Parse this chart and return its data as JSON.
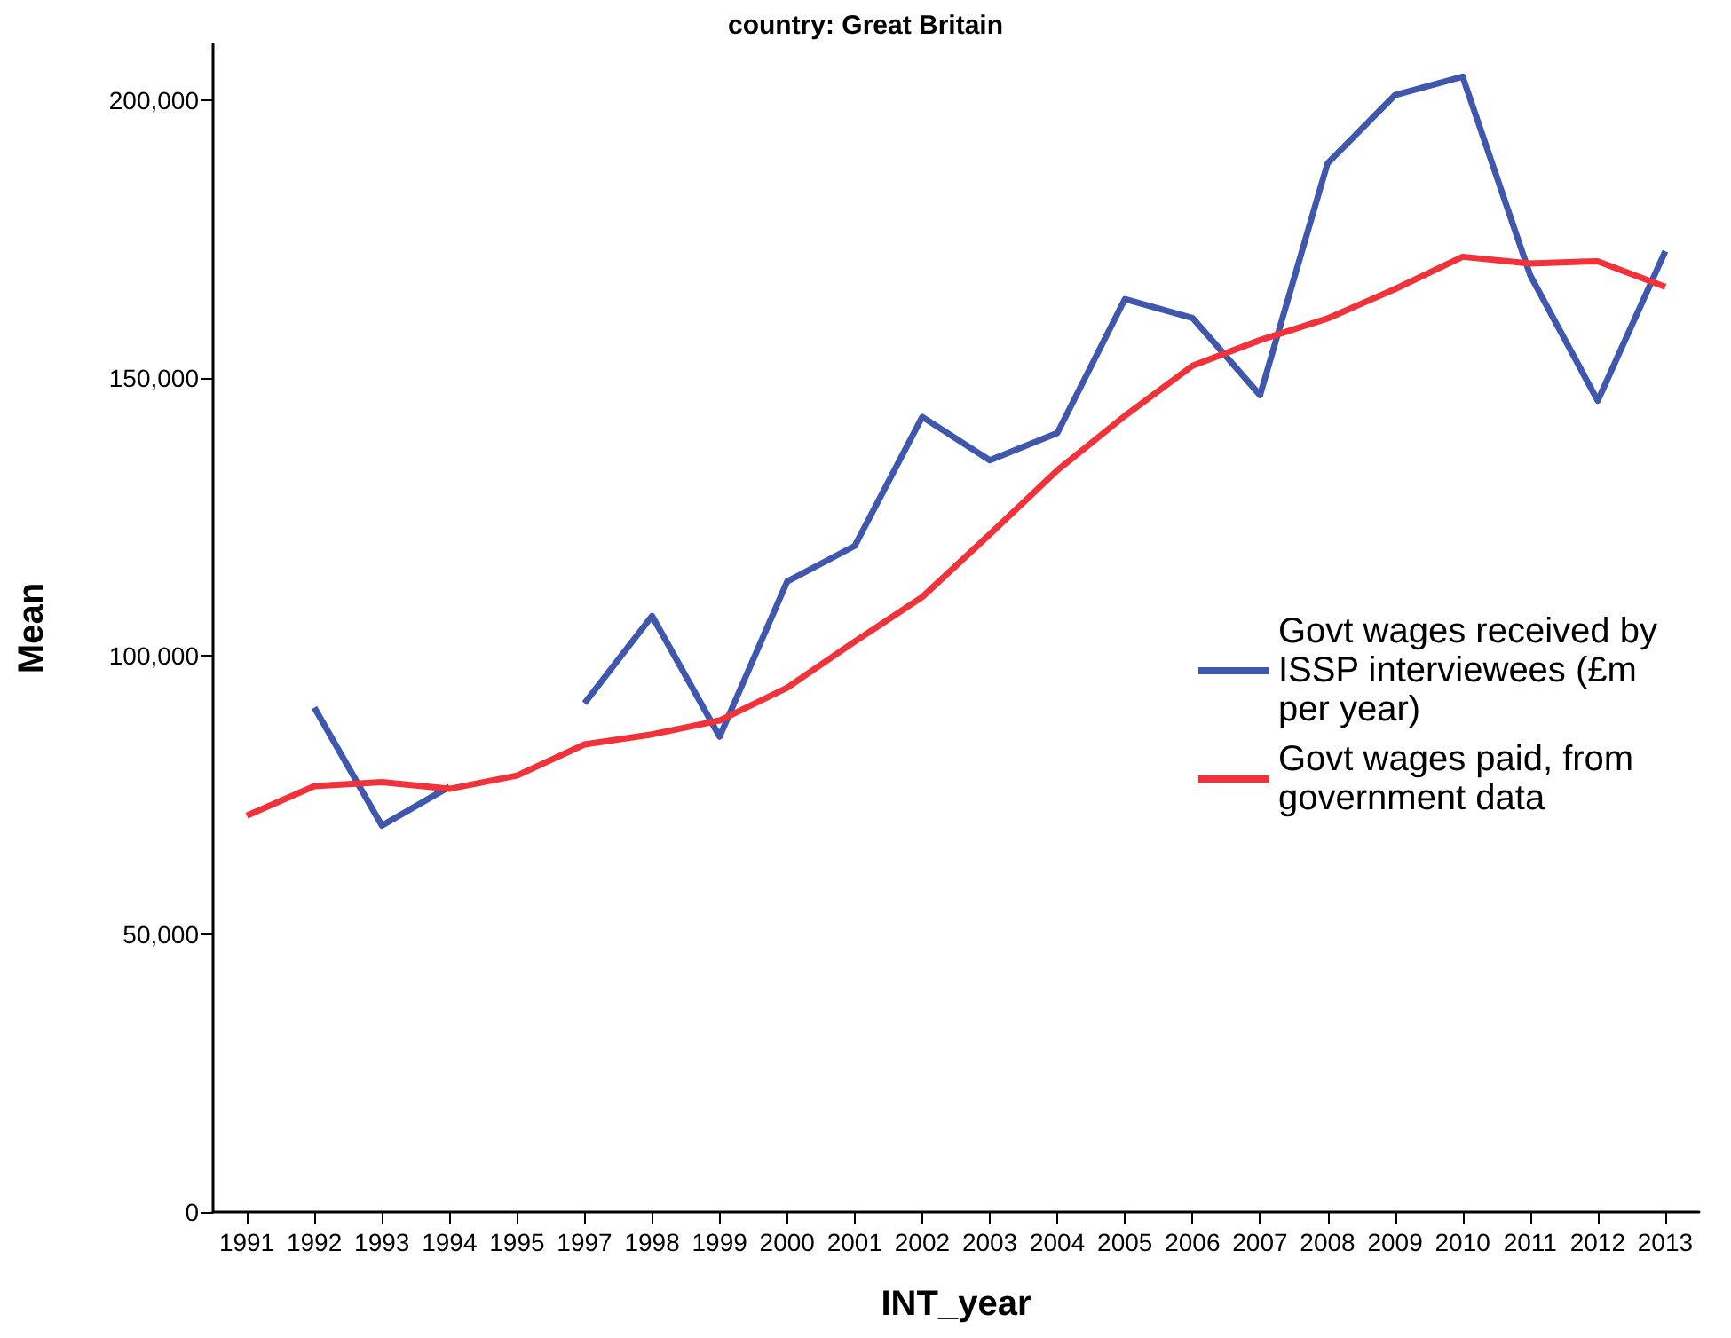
{
  "chart_data": {
    "type": "line",
    "title": "country: Great Britain",
    "xlabel": "INT_year",
    "ylabel": "Mean",
    "categories": [
      "1991",
      "1992",
      "1993",
      "1994",
      "1995",
      "1997",
      "1998",
      "1999",
      "2000",
      "2001",
      "2002",
      "2003",
      "2004",
      "2005",
      "2006",
      "2007",
      "2008",
      "2009",
      "2010",
      "2011",
      "2012",
      "2013"
    ],
    "series": [
      {
        "name": "Govt wages received by ISSP interviewees (£m per year)",
        "color": "#3f58ae",
        "values": [
          null,
          90700,
          69500,
          76500,
          null,
          91500,
          107200,
          85500,
          113400,
          119800,
          143000,
          135200,
          140100,
          164200,
          160800,
          146900,
          188600,
          200900,
          204200,
          168500,
          145900,
          172800
        ]
      },
      {
        "name": "Govt wages paid, from government data",
        "color": "#f0333a",
        "values": [
          71300,
          76600,
          77300,
          76100,
          78500,
          84100,
          85900,
          88400,
          94300,
          102600,
          110600,
          121900,
          133400,
          143200,
          152200,
          156800,
          160700,
          166000,
          171800,
          170600,
          171000,
          166400
        ]
      }
    ],
    "ylim": [
      0,
      210000
    ],
    "yticks": [
      {
        "value": 0,
        "label": "0"
      },
      {
        "value": 50000,
        "label": "50,000"
      },
      {
        "value": 100000,
        "label": "100,000"
      },
      {
        "value": 150000,
        "label": "150,000"
      },
      {
        "value": 200000,
        "label": "200,000"
      }
    ],
    "grid": false,
    "legend": "right",
    "marker": "none"
  }
}
